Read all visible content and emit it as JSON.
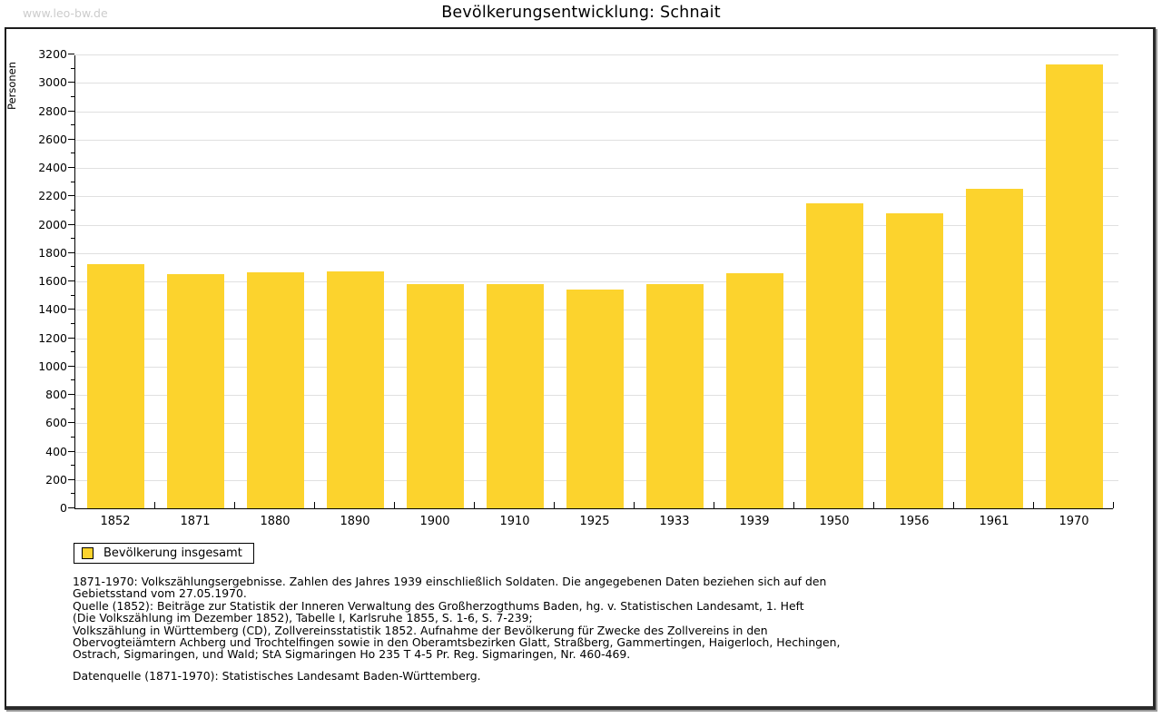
{
  "watermark": "www.leo-bw.de",
  "title": "Bevölkerungsentwicklung: Schnait",
  "chart_data": {
    "type": "bar",
    "title": "Bevölkerungsentwicklung: Schnait",
    "xlabel": "",
    "ylabel": "Personen",
    "categories": [
      "1852",
      "1871",
      "1880",
      "1890",
      "1900",
      "1910",
      "1925",
      "1933",
      "1939",
      "1950",
      "1956",
      "1961",
      "1970"
    ],
    "series": [
      {
        "name": "Bevölkerung insgesamt",
        "values": [
          1720,
          1650,
          1665,
          1670,
          1580,
          1580,
          1545,
          1580,
          1655,
          2150,
          2080,
          2250,
          3130
        ]
      }
    ],
    "ylim": [
      0,
      3200
    ],
    "y_tick_step": 200,
    "y_minor_tick_step": 100,
    "grid": "horizontal-major",
    "legend_position": "bottom-left",
    "bar_color": "#fcd32d"
  },
  "legend": {
    "label": "Bevölkerung insgesamt",
    "swatch_color": "#fcd32d"
  },
  "notes": [
    "1871-1970: Volkszählungsergebnisse. Zahlen des Jahres 1939 einschließlich Soldaten. Die angegebenen Daten beziehen sich auf den",
    "Gebietsstand vom 27.05.1970.",
    "Quelle (1852): Beiträge zur Statistik der Inneren Verwaltung des Großherzogthums Baden, hg. v. Statistischen Landesamt, 1. Heft",
    "(Die Volkszählung im Dezember 1852), Tabelle I, Karlsruhe 1855, S. 1-6, S. 7-239;",
    "Volkszählung in Württemberg (CD), Zollvereinsstatistik 1852. Aufnahme der Bevölkerung für Zwecke des Zollvereins in den",
    "Obervogteiämtern Achberg und Trochtelfingen sowie in den Oberamtsbezirken Glatt, Straßberg, Gammertingen, Haigerloch, Hechingen,",
    "Ostrach, Sigmaringen, und Wald; StA Sigmaringen Ho 235 T 4-5 Pr. Reg. Sigmaringen, Nr. 460-469."
  ],
  "datasource": "Datenquelle (1871-1970): Statistisches Landesamt Baden-Württemberg.",
  "colors": {
    "bar": "#fcd32d",
    "grid": "#e0e0e0",
    "axis": "#000000",
    "watermark": "#cccccc"
  }
}
